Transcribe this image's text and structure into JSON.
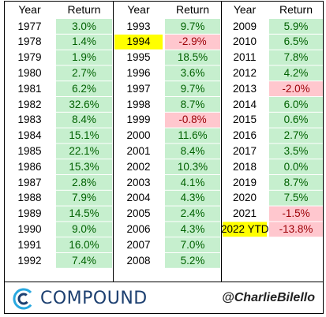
{
  "chart_data": {
    "type": "table",
    "columns": [
      "Year",
      "Return"
    ],
    "colors": {
      "positive_bg": "#c6efce",
      "negative_bg": "#ffc7ce",
      "positive_text": "#006100",
      "negative_text": "#9c0006",
      "highlight_bg": "#ffff00"
    },
    "blocks": [
      {
        "rows": [
          {
            "year": "1977",
            "return": "3.0%",
            "value": 3.0
          },
          {
            "year": "1978",
            "return": "1.4%",
            "value": 1.4
          },
          {
            "year": "1979",
            "return": "1.9%",
            "value": 1.9
          },
          {
            "year": "1980",
            "return": "2.7%",
            "value": 2.7
          },
          {
            "year": "1981",
            "return": "6.2%",
            "value": 6.2
          },
          {
            "year": "1982",
            "return": "32.6%",
            "value": 32.6
          },
          {
            "year": "1983",
            "return": "8.4%",
            "value": 8.4
          },
          {
            "year": "1984",
            "return": "15.1%",
            "value": 15.1
          },
          {
            "year": "1985",
            "return": "22.1%",
            "value": 22.1
          },
          {
            "year": "1986",
            "return": "15.3%",
            "value": 15.3
          },
          {
            "year": "1987",
            "return": "2.8%",
            "value": 2.8
          },
          {
            "year": "1988",
            "return": "7.9%",
            "value": 7.9
          },
          {
            "year": "1989",
            "return": "14.5%",
            "value": 14.5
          },
          {
            "year": "1990",
            "return": "9.0%",
            "value": 9.0
          },
          {
            "year": "1991",
            "return": "16.0%",
            "value": 16.0
          },
          {
            "year": "1992",
            "return": "7.4%",
            "value": 7.4
          }
        ]
      },
      {
        "rows": [
          {
            "year": "1993",
            "return": "9.7%",
            "value": 9.7
          },
          {
            "year": "1994",
            "return": "-2.9%",
            "value": -2.9,
            "highlight": true
          },
          {
            "year": "1995",
            "return": "18.5%",
            "value": 18.5
          },
          {
            "year": "1996",
            "return": "3.6%",
            "value": 3.6
          },
          {
            "year": "1997",
            "return": "9.7%",
            "value": 9.7
          },
          {
            "year": "1998",
            "return": "8.7%",
            "value": 8.7
          },
          {
            "year": "1999",
            "return": "-0.8%",
            "value": -0.8
          },
          {
            "year": "2000",
            "return": "11.6%",
            "value": 11.6
          },
          {
            "year": "2001",
            "return": "8.4%",
            "value": 8.4
          },
          {
            "year": "2002",
            "return": "10.3%",
            "value": 10.3
          },
          {
            "year": "2003",
            "return": "4.1%",
            "value": 4.1
          },
          {
            "year": "2004",
            "return": "4.3%",
            "value": 4.3
          },
          {
            "year": "2005",
            "return": "2.4%",
            "value": 2.4
          },
          {
            "year": "2006",
            "return": "4.3%",
            "value": 4.3
          },
          {
            "year": "2007",
            "return": "7.0%",
            "value": 7.0
          },
          {
            "year": "2008",
            "return": "5.2%",
            "value": 5.2
          }
        ]
      },
      {
        "rows": [
          {
            "year": "2009",
            "return": "5.9%",
            "value": 5.9
          },
          {
            "year": "2010",
            "return": "6.5%",
            "value": 6.5
          },
          {
            "year": "2011",
            "return": "7.8%",
            "value": 7.8
          },
          {
            "year": "2012",
            "return": "4.2%",
            "value": 4.2
          },
          {
            "year": "2013",
            "return": "-2.0%",
            "value": -2.0
          },
          {
            "year": "2014",
            "return": "6.0%",
            "value": 6.0
          },
          {
            "year": "2015",
            "return": "0.6%",
            "value": 0.6
          },
          {
            "year": "2016",
            "return": "2.7%",
            "value": 2.7
          },
          {
            "year": "2017",
            "return": "3.5%",
            "value": 3.5
          },
          {
            "year": "2018",
            "return": "0.0%",
            "value": 0.0
          },
          {
            "year": "2019",
            "return": "8.7%",
            "value": 8.7
          },
          {
            "year": "2020",
            "return": "7.5%",
            "value": 7.5
          },
          {
            "year": "2021",
            "return": "-1.5%",
            "value": -1.5
          },
          {
            "year": "2022 YTD",
            "return": "-13.8%",
            "value": -13.8,
            "highlight": true
          }
        ]
      }
    ]
  },
  "footer": {
    "brand": "COMPOUND",
    "handle": "@CharlieBilello",
    "logo_icon": "compound-logo-icon",
    "brand_color": "#1c3f70",
    "logo_accent": "#29a8e0"
  }
}
